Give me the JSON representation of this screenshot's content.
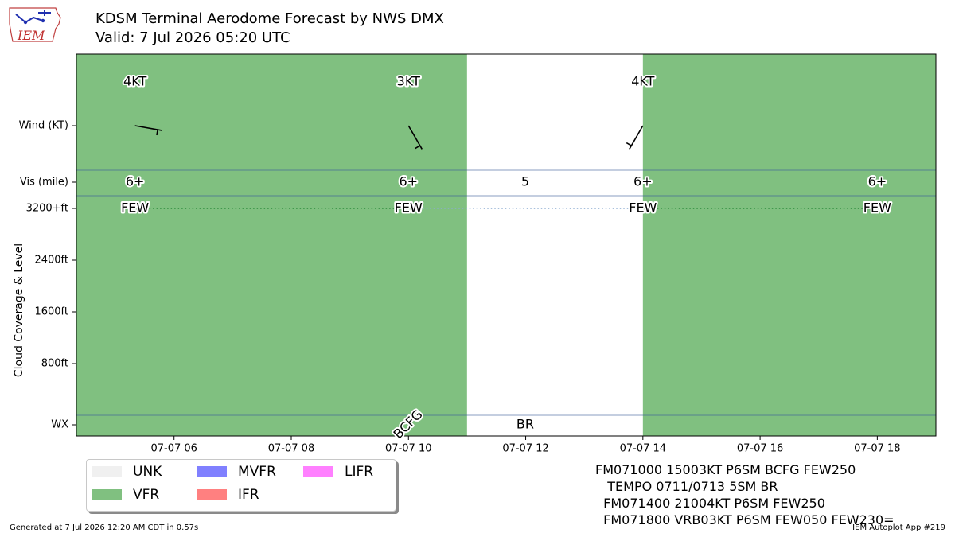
{
  "header": {
    "title_line1": "KDSM Terminal Aerodome Forecast by NWS DMX",
    "title_line2": "Valid: 7 Jul 2026 05:20 UTC",
    "logo_text": "IEM"
  },
  "chart_data": {
    "type": "timeline",
    "x_range": [
      "2026-07-07T04:20",
      "2026-07-07T19:00"
    ],
    "x_ticks": [
      "07-07 06",
      "07-07 08",
      "07-07 10",
      "07-07 12",
      "07-07 14",
      "07-07 16",
      "07-07 18"
    ],
    "ylabel": "Cloud Coverage & Level",
    "y_tick_labels": [
      "Wind (KT)",
      "Vis (mile)",
      "3200+ft",
      "2400ft",
      "1600ft",
      "800ft",
      "WX"
    ],
    "flight_category_bands": [
      {
        "start": "2026-07-07T04:20",
        "end": "2026-07-07T11:00",
        "category": "VFR",
        "color": "#80c080"
      },
      {
        "start": "2026-07-07T11:00",
        "end": "2026-07-07T14:00",
        "category": "UNK",
        "color": "#ffffff"
      },
      {
        "start": "2026-07-07T14:00",
        "end": "2026-07-07T19:00",
        "category": "VFR",
        "color": "#80c080"
      }
    ],
    "wind": [
      {
        "time": "2026-07-07T05:20",
        "speed_kt": 4,
        "dir_deg": 100,
        "label": "4KT"
      },
      {
        "time": "2026-07-07T10:00",
        "speed_kt": 3,
        "dir_deg": 150,
        "label": "3KT"
      },
      {
        "time": "2026-07-07T14:00",
        "speed_kt": 4,
        "dir_deg": 210,
        "label": "4KT"
      }
    ],
    "visibility": [
      {
        "time": "2026-07-07T05:20",
        "label": "6+"
      },
      {
        "time": "2026-07-07T10:00",
        "label": "6+"
      },
      {
        "time": "2026-07-07T11:00",
        "label": "5"
      },
      {
        "time": "2026-07-07T14:00",
        "label": "6+"
      },
      {
        "time": "2026-07-07T18:00",
        "label": "6+"
      }
    ],
    "clouds": [
      {
        "time": "2026-07-07T05:20",
        "coverage": "FEW",
        "level": "3200+ft"
      },
      {
        "time": "2026-07-07T10:00",
        "coverage": "FEW",
        "level": "3200+ft"
      },
      {
        "time": "2026-07-07T14:00",
        "coverage": "FEW",
        "level": "3200+ft"
      },
      {
        "time": "2026-07-07T18:00",
        "coverage": "FEW",
        "level": "3200+ft"
      }
    ],
    "weather": [
      {
        "time": "2026-07-07T10:00",
        "label": "BCFG"
      },
      {
        "time": "2026-07-07T11:00",
        "label": "BR"
      }
    ]
  },
  "legend": {
    "items": [
      {
        "label": "UNK",
        "color": "#f0f0f0"
      },
      {
        "label": "VFR",
        "color": "#80c080"
      },
      {
        "label": "MVFR",
        "color": "#8080ff"
      },
      {
        "label": "IFR",
        "color": "#ff8080"
      },
      {
        "label": "LIFR",
        "color": "#ff80ff"
      }
    ]
  },
  "taf": {
    "lines": [
      "FM071000 15003KT P6SM BCFG FEW250",
      "   TEMPO 0711/0713 5SM BR",
      "  FM071400 21004KT P6SM FEW250",
      "  FM071800 VRB03KT P6SM FEW050 FEW230="
    ]
  },
  "footer": {
    "generated": "Generated at 7 Jul 2026 12:20 AM CDT in 0.57s",
    "app": "IEM Autoplot App #219"
  }
}
